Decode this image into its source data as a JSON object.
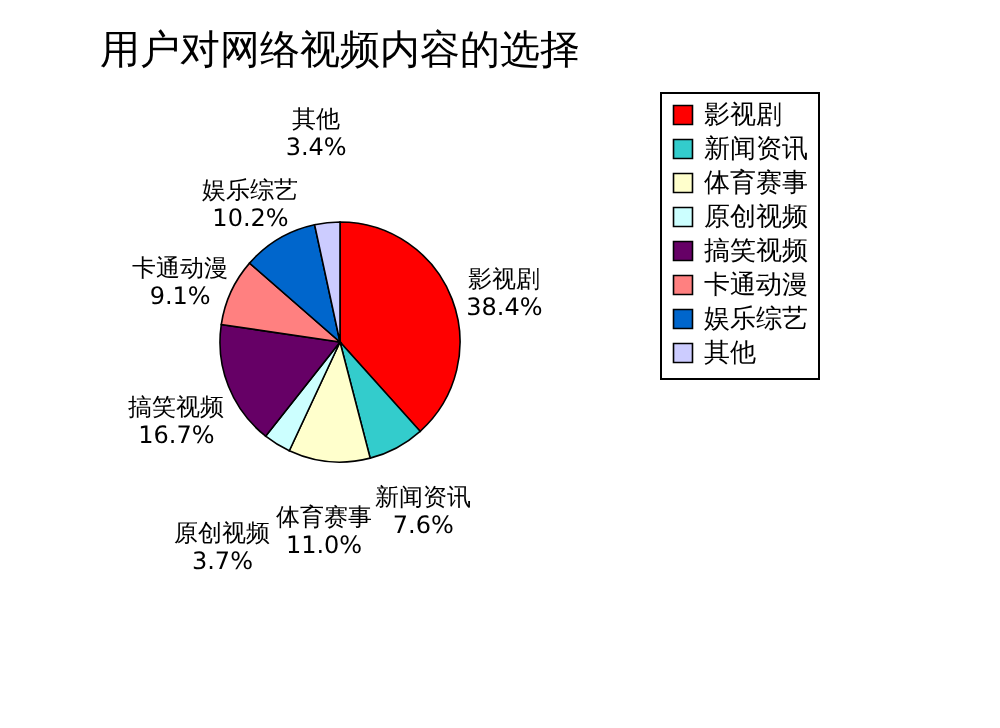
{
  "chart_data": {
    "type": "pie",
    "title": "用户对网络视频内容的选择",
    "categories": [
      "影视剧",
      "新闻资讯",
      "体育赛事",
      "原创视频",
      "搞笑视频",
      "卡通动漫",
      "娱乐综艺",
      "其他"
    ],
    "values": [
      38.4,
      7.6,
      11.0,
      3.7,
      16.7,
      9.1,
      10.2,
      3.4
    ],
    "value_labels": [
      "38.4%",
      "7.6%",
      "11.0%",
      "3.7%",
      "16.7%",
      "9.1%",
      "10.2%",
      "3.4%"
    ],
    "colors": [
      "#ff0000",
      "#33cccc",
      "#ffffcc",
      "#ccffff",
      "#660066",
      "#ff8080",
      "#0066cc",
      "#ccccff"
    ],
    "legend": "right"
  }
}
